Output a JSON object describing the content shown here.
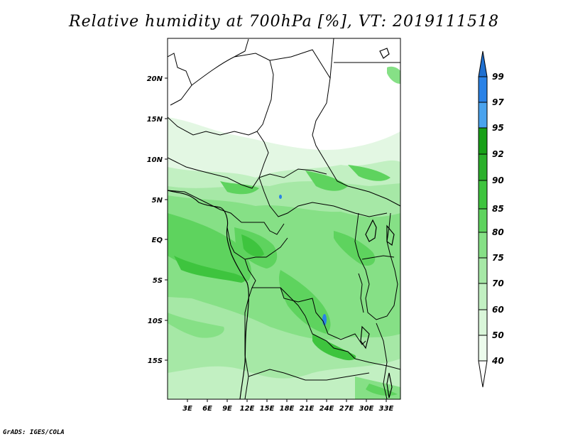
{
  "title": "Relative humidity at 700hPa [%], VT: 2019111518",
  "footer": "GrADS: IGES/COLA",
  "map": {
    "lat_ticks": [
      "20N",
      "15N",
      "10N",
      "5N",
      "EQ",
      "5S",
      "10S",
      "15S"
    ],
    "lon_ticks": [
      "3E",
      "6E",
      "9E",
      "12E",
      "15E",
      "18E",
      "21E",
      "24E",
      "27E",
      "30E",
      "33E"
    ]
  },
  "colorbar": {
    "levels": [
      "99",
      "97",
      "95",
      "92",
      "90",
      "85",
      "80",
      "75",
      "70",
      "60",
      "50",
      "40"
    ],
    "colors": {
      "above_99": "#1e6fd0",
      "97_99": "#2a82e6",
      "95_97": "#4aa3ee",
      "92_95": "#18a018",
      "90_92": "#2bb02b",
      "85_90": "#3ec43e",
      "80_85": "#5ed35e",
      "75_80": "#86e086",
      "70_75": "#a6e8a6",
      "60_70": "#c2f0c2",
      "50_60": "#d9f6d9",
      "40_50": "#ecfbec",
      "below_40": "#ffffff"
    }
  }
}
